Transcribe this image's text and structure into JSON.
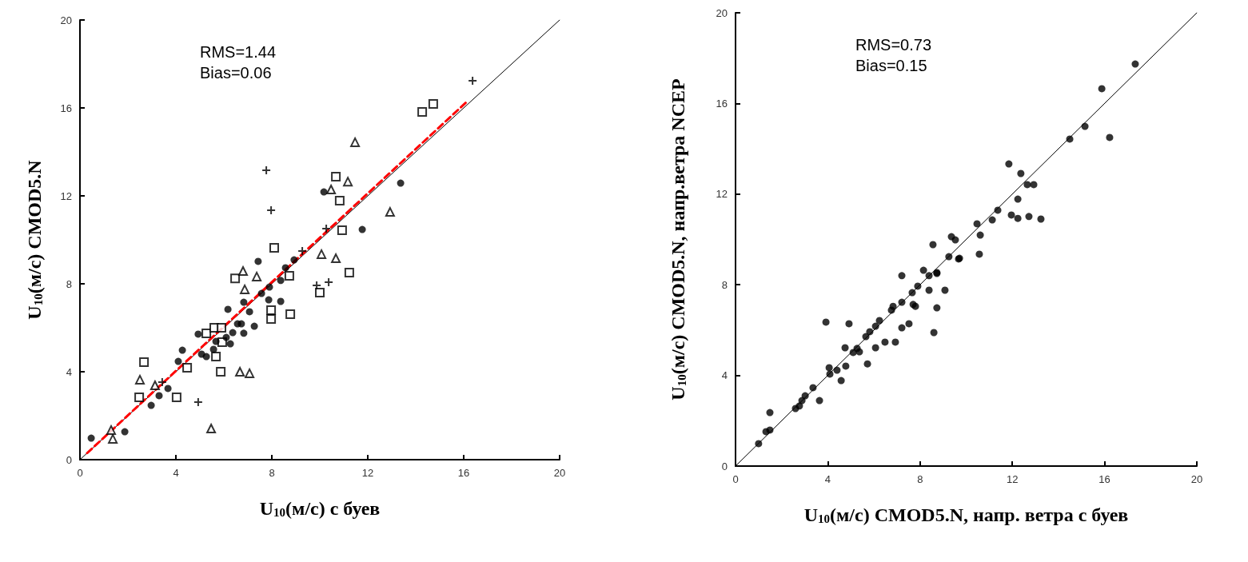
{
  "chart_data": [
    {
      "type": "scatter",
      "xlabel": "U$_{10}$(м/с) с буев",
      "ylabel": "U$_{10}$(м/с) CMOD5.N",
      "annotations": [
        "RMS=1.44",
        "Bias=0.06"
      ],
      "xlim": [
        0,
        20
      ],
      "ylim": [
        0,
        20
      ],
      "xticks": [
        0,
        4,
        8,
        12,
        16,
        20
      ],
      "yticks": [
        0,
        4,
        8,
        12,
        16,
        20
      ],
      "grid": false,
      "series": [
        {
          "type": "line",
          "marker": "none",
          "line_style": "solid",
          "color": "#000000",
          "x": [
            0,
            20
          ],
          "values": [
            0,
            20
          ]
        },
        {
          "type": "line",
          "marker": "none",
          "line_style": "dashed",
          "color": "#ff0000",
          "x": [
            0.3,
            16.1
          ],
          "values": [
            0.3,
            16.25
          ]
        },
        {
          "marker": "square",
          "color": "#000000",
          "x": [
            2.67,
            2.47,
            4.03,
            4.47,
            5.27,
            5.6,
            5.9,
            5.67,
            5.87,
            5.93,
            6.47,
            7.97,
            7.97,
            8.77,
            8.73,
            8.1,
            10.67,
            10.83,
            10.93,
            11.23,
            10.0,
            14.27,
            14.73
          ],
          "values": [
            4.44,
            2.84,
            2.84,
            4.18,
            5.75,
            6.0,
            6.0,
            4.69,
            4.0,
            5.35,
            8.25,
            6.8,
            6.4,
            6.62,
            8.36,
            9.64,
            12.87,
            11.78,
            10.44,
            8.51,
            7.6,
            15.82,
            16.18
          ]
        },
        {
          "marker": "triangle",
          "color": "#000000",
          "x": [
            11.47,
            11.17,
            10.47,
            12.93,
            10.07,
            10.67,
            7.37,
            6.8,
            6.87,
            2.5,
            3.13,
            1.37,
            1.3,
            6.67,
            7.07,
            5.47
          ],
          "values": [
            14.44,
            12.65,
            12.29,
            11.27,
            9.35,
            9.16,
            8.33,
            8.58,
            7.75,
            3.64,
            3.38,
            0.95,
            1.35,
            4.0,
            3.93,
            1.42
          ]
        },
        {
          "marker": "circle",
          "color": "#000000",
          "x": [
            0.47,
            1.87,
            3.67,
            2.97,
            4.27,
            5.27,
            5.57,
            5.67,
            6.37,
            6.57,
            6.83,
            7.27,
            7.07,
            7.57,
            7.9,
            7.87,
            8.37,
            8.57,
            8.93,
            13.37,
            11.77,
            3.3,
            4.1,
            4.93,
            5.07,
            6.17,
            6.1,
            6.27,
            6.83,
            7.43,
            8.37,
            6.73,
            10.17
          ],
          "values": [
            0.98,
            1.27,
            3.24,
            2.47,
            4.98,
            4.69,
            5.02,
            5.38,
            5.78,
            6.18,
            5.75,
            6.07,
            6.73,
            7.56,
            7.85,
            7.27,
            7.2,
            8.73,
            9.09,
            12.58,
            10.47,
            2.91,
            4.47,
            5.71,
            4.8,
            6.84,
            5.56,
            5.27,
            7.16,
            9.02,
            8.15,
            6.18,
            12.18
          ]
        },
        {
          "marker": "cross",
          "color": "#000000",
          "x": [
            7.77,
            7.97,
            10.27,
            9.87,
            10.37,
            9.27,
            4.93,
            3.43,
            16.37
          ],
          "values": [
            13.16,
            11.35,
            10.51,
            7.93,
            8.07,
            9.49,
            2.62,
            3.53,
            17.24
          ]
        }
      ]
    },
    {
      "type": "scatter",
      "xlabel": "U$_{10}$(м/с) CMOD5.N, напр. ветра с буев",
      "ylabel": "U$_{10}$(м/с) CMOD5.N, напр.ветра NCEP",
      "annotations": [
        "RMS=0.73",
        "Bias=0.15"
      ],
      "xlim": [
        0,
        20
      ],
      "ylim": [
        0,
        20
      ],
      "xticks": [
        0,
        4,
        8,
        12,
        16,
        20
      ],
      "yticks": [
        0,
        4,
        8,
        12,
        16,
        20
      ],
      "grid": false,
      "series": [
        {
          "type": "line",
          "marker": "none",
          "line_style": "solid",
          "color": "#000000",
          "x": [
            0,
            20
          ],
          "values": [
            0,
            20
          ]
        },
        {
          "marker": "circle",
          "color": "#000000",
          "x": [
            1.0,
            1.32,
            1.49,
            1.49,
            2.6,
            2.77,
            2.88,
            3.02,
            3.36,
            3.64,
            3.92,
            4.09,
            4.06,
            4.58,
            4.4,
            4.78,
            4.75,
            4.92,
            5.1,
            5.27,
            5.37,
            5.72,
            5.65,
            5.82,
            6.07,
            6.07,
            6.24,
            6.48,
            6.76,
            6.83,
            6.93,
            7.21,
            7.21,
            7.21,
            7.52,
            7.7,
            7.8,
            7.66,
            7.9,
            8.15,
            8.39,
            8.39,
            8.73,
            8.73,
            8.6,
            9.08,
            9.25,
            9.71,
            17.33,
            15.88,
            15.15,
            16.22,
            14.49,
            11.85,
            12.37,
            12.65,
            12.93,
            12.24,
            11.37,
            11.13,
            11.96,
            12.24,
            12.72,
            13.24,
            10.47,
            10.61,
            9.36,
            9.53,
            10.57,
            8.56,
            9.67,
            8.73
          ],
          "values": [
            0.99,
            1.52,
            1.59,
            2.36,
            2.54,
            2.65,
            2.89,
            3.1,
            3.46,
            2.89,
            6.35,
            4.06,
            4.34,
            3.77,
            4.23,
            4.41,
            5.22,
            6.28,
            5.01,
            5.19,
            5.04,
            4.51,
            5.71,
            5.93,
            5.22,
            6.17,
            6.42,
            5.47,
            6.88,
            7.05,
            5.47,
            7.23,
            8.4,
            6.1,
            6.28,
            7.13,
            7.05,
            7.65,
            7.94,
            8.64,
            8.4,
            7.76,
            8.54,
            6.98,
            5.89,
            7.76,
            9.24,
            9.17,
            17.74,
            16.65,
            14.99,
            14.5,
            14.43,
            13.33,
            12.91,
            12.42,
            12.42,
            11.78,
            11.29,
            10.86,
            11.08,
            10.93,
            11.01,
            10.9,
            10.69,
            10.19,
            10.12,
            9.98,
            9.35,
            9.77,
            9.14,
            8.5
          ]
        }
      ]
    }
  ]
}
